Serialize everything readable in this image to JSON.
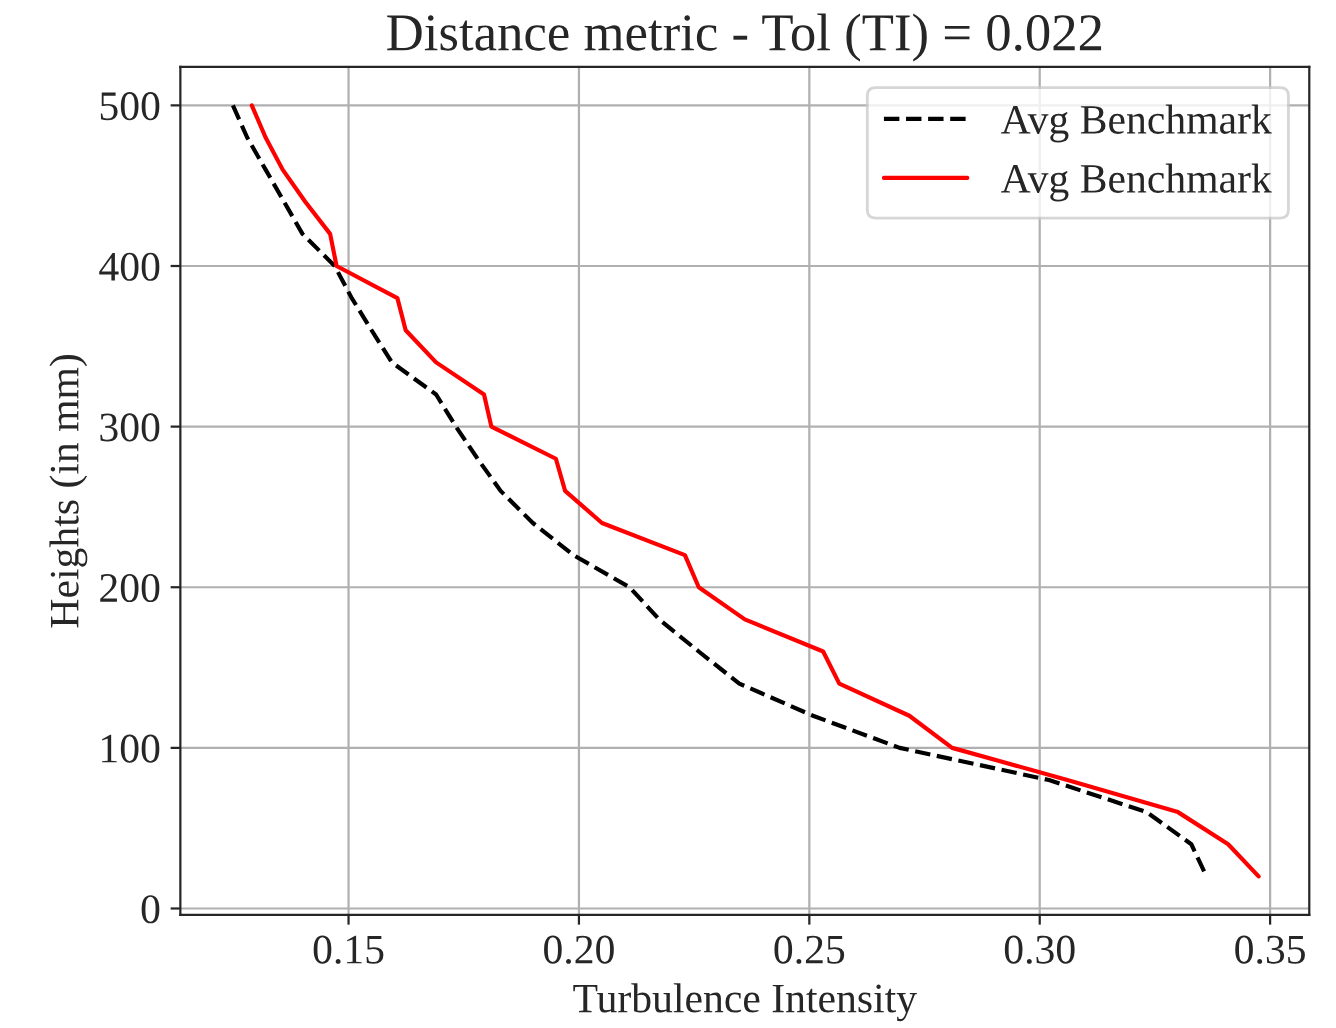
{
  "chart_data": {
    "type": "line",
    "title": "Distance metric - Tol (TI) = 0.022",
    "xlabel": "Turbulence Intensity",
    "ylabel": "Heights (in mm)",
    "series": [
      {
        "name": "Avg Benchmark",
        "color": "#000000",
        "line_style": "dashed",
        "x": [
          0.1249,
          0.128,
          0.132,
          0.136,
          0.14,
          0.147,
          0.1507,
          0.155,
          0.1594,
          0.169,
          0.1733,
          0.178,
          0.183,
          0.19,
          0.1988,
          0.211,
          0.2174,
          0.226,
          0.2348,
          0.2508,
          0.2696,
          0.302,
          0.3232,
          0.3329,
          0.3362
        ],
        "values": [
          500,
          480,
          460,
          440,
          420,
          400,
          380,
          360,
          340,
          320,
          300,
          280,
          260,
          240,
          220,
          200,
          180,
          160,
          140,
          120,
          100,
          80,
          60,
          40,
          20
        ]
      },
      {
        "name": "Avg Benchmark",
        "color": "#ff0000",
        "line_style": "solid",
        "x": [
          0.129,
          0.132,
          0.1357,
          0.1406,
          0.146,
          0.1474,
          0.1606,
          0.1624,
          0.169,
          0.1794,
          0.181,
          0.195,
          0.197,
          0.205,
          0.223,
          0.226,
          0.236,
          0.253,
          0.2565,
          0.2717,
          0.281,
          0.306,
          0.33,
          0.3409,
          0.3475
        ],
        "values": [
          500,
          480,
          460,
          440,
          420,
          400,
          380,
          360,
          340,
          320,
          300,
          280,
          260,
          240,
          220,
          200,
          180,
          160,
          140,
          120,
          100,
          80,
          60,
          40,
          20
        ]
      }
    ],
    "xlim": [
      0.1135,
      0.3585
    ],
    "xticks": [
      {
        "value": 0.15,
        "label": "0.15"
      },
      {
        "value": 0.2,
        "label": "0.20"
      },
      {
        "value": 0.25,
        "label": "0.25"
      },
      {
        "value": 0.3,
        "label": "0.30"
      },
      {
        "value": 0.35,
        "label": "0.35"
      }
    ],
    "ylim": [
      -4,
      524
    ],
    "yticks": [
      0,
      100,
      200,
      300,
      400,
      500
    ],
    "grid": true,
    "legend": "top right",
    "marker": "none"
  }
}
